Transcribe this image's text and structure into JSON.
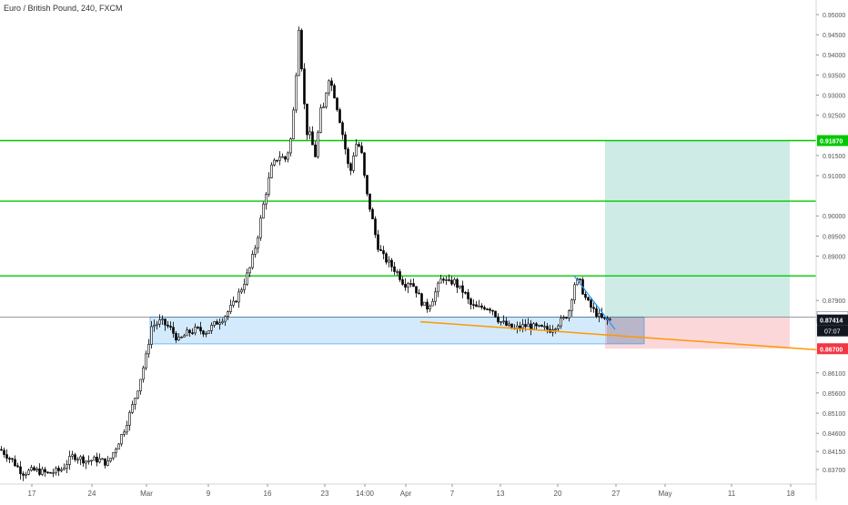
{
  "header": {
    "title": "Euro / British Pound, 240, FXCM"
  },
  "chart_data": {
    "type": "candlestick",
    "title": "Euro / British Pound, 240, FXCM",
    "ylim": [
      0.8355,
      0.953
    ],
    "x_range": [
      0,
      932
    ],
    "y_ticks": [
      "0.95000",
      "0.94500",
      "0.94000",
      "0.93500",
      "0.93000",
      "0.92500",
      "0.91500",
      "0.91000",
      "0.90000",
      "0.89500",
      "0.89000",
      "0.87900",
      "0.86100",
      "0.85600",
      "0.85100",
      "0.84600",
      "0.84150",
      "0.83700"
    ],
    "x_ticks": [
      {
        "label": "17",
        "x": 35
      },
      {
        "label": "24",
        "x": 101
      },
      {
        "label": "Mar",
        "x": 161
      },
      {
        "label": "9",
        "x": 229
      },
      {
        "label": "16",
        "x": 294
      },
      {
        "label": "23",
        "x": 357
      },
      {
        "label": "14:00",
        "x": 401
      },
      {
        "label": "Apr",
        "x": 446
      },
      {
        "label": "7",
        "x": 497
      },
      {
        "label": "13",
        "x": 550
      },
      {
        "label": "20",
        "x": 613
      },
      {
        "label": "27",
        "x": 677
      },
      {
        "label": "May",
        "x": 731
      },
      {
        "label": "11",
        "x": 804
      },
      {
        "label": "18",
        "x": 869
      }
    ],
    "horizontal_levels": [
      {
        "value": 0.9187,
        "label": "0.91870",
        "color": "#00c800"
      },
      {
        "value": 0.90365,
        "label": "0.90365",
        "color": "#00c800"
      },
      {
        "value": 0.8851,
        "label": "0.88510",
        "color": "#00c800"
      },
      {
        "value": 0.87489,
        "label": "0.87489",
        "color": "#787b86"
      }
    ],
    "price_labels": [
      {
        "value": 0.9187,
        "label": "0.91870",
        "bg": "#00c800"
      },
      {
        "value": 0.87489,
        "label": "0.87489",
        "bg": "#ffffff",
        "fg": "#333333"
      },
      {
        "value": 0.87414,
        "label": "0.87414",
        "bg": "#131722"
      },
      {
        "value": 0.867,
        "label": "0.86700",
        "bg": "#f23645"
      }
    ],
    "countdown": "07:07",
    "zone_box": {
      "x0": 165,
      "x1": 708,
      "y_top": 0.8748,
      "y_bottom": 0.8682,
      "color": "#bbdefb"
    },
    "position_tool": {
      "x0": 665,
      "x1": 868,
      "entry": 0.87489,
      "target": 0.9187,
      "stop": 0.867
    },
    "trendline": {
      "x0": 462,
      "y0": 0.8737,
      "x1": 932,
      "y1": 0.8662,
      "color": "#ff9800"
    },
    "blue_line": {
      "x0": 631,
      "y0": 0.8851,
      "x1": 676,
      "y1": 0.8718,
      "color": "#2196f3"
    },
    "path": [
      [
        0,
        0.842
      ],
      [
        12,
        0.8395
      ],
      [
        24,
        0.8362
      ],
      [
        38,
        0.8368
      ],
      [
        52,
        0.836
      ],
      [
        66,
        0.8368
      ],
      [
        80,
        0.8405
      ],
      [
        94,
        0.8392
      ],
      [
        108,
        0.8395
      ],
      [
        118,
        0.8385
      ],
      [
        128,
        0.843
      ],
      [
        136,
        0.847
      ],
      [
        144,
        0.852
      ],
      [
        152,
        0.858
      ],
      [
        160,
        0.865
      ],
      [
        166,
        0.8725
      ],
      [
        176,
        0.8738
      ],
      [
        186,
        0.8722
      ],
      [
        196,
        0.869
      ],
      [
        206,
        0.871
      ],
      [
        216,
        0.8718
      ],
      [
        226,
        0.8712
      ],
      [
        236,
        0.8732
      ],
      [
        246,
        0.875
      ],
      [
        256,
        0.878
      ],
      [
        266,
        0.8825
      ],
      [
        274,
        0.887
      ],
      [
        282,
        0.894
      ],
      [
        290,
        0.904
      ],
      [
        298,
        0.912
      ],
      [
        306,
        0.915
      ],
      [
        314,
        0.914
      ],
      [
        320,
        0.92
      ],
      [
        324,
        0.932
      ],
      [
        328,
        0.947
      ],
      [
        332,
        0.934
      ],
      [
        336,
        0.921
      ],
      [
        340,
        0.92
      ],
      [
        346,
        0.915
      ],
      [
        352,
        0.926
      ],
      [
        356,
        0.927
      ],
      [
        360,
        0.935
      ],
      [
        366,
        0.931
      ],
      [
        372,
        0.925
      ],
      [
        378,
        0.918
      ],
      [
        384,
        0.91
      ],
      [
        390,
        0.918
      ],
      [
        396,
        0.917
      ],
      [
        402,
        0.906
      ],
      [
        408,
        0.9
      ],
      [
        414,
        0.893
      ],
      [
        420,
        0.89
      ],
      [
        428,
        0.888
      ],
      [
        436,
        0.886
      ],
      [
        444,
        0.883
      ],
      [
        450,
        0.884
      ],
      [
        456,
        0.882
      ],
      [
        462,
        0.879
      ],
      [
        468,
        0.877
      ],
      [
        474,
        0.879
      ],
      [
        480,
        0.882
      ],
      [
        486,
        0.885
      ],
      [
        492,
        0.883
      ],
      [
        498,
        0.884
      ],
      [
        504,
        0.882
      ],
      [
        510,
        0.881
      ],
      [
        516,
        0.878
      ],
      [
        524,
        0.877
      ],
      [
        532,
        0.8775
      ],
      [
        540,
        0.877
      ],
      [
        548,
        0.874
      ],
      [
        556,
        0.8728
      ],
      [
        564,
        0.8718
      ],
      [
        572,
        0.8725
      ],
      [
        580,
        0.8728
      ],
      [
        588,
        0.8722
      ],
      [
        596,
        0.872
      ],
      [
        604,
        0.8718
      ],
      [
        612,
        0.8732
      ],
      [
        620,
        0.8745
      ],
      [
        626,
        0.877
      ],
      [
        630,
        0.883
      ],
      [
        636,
        0.884
      ],
      [
        642,
        0.88
      ],
      [
        648,
        0.8775
      ],
      [
        654,
        0.876
      ],
      [
        660,
        0.8745
      ],
      [
        666,
        0.874
      ],
      [
        670,
        0.8742
      ]
    ],
    "grid": false
  }
}
